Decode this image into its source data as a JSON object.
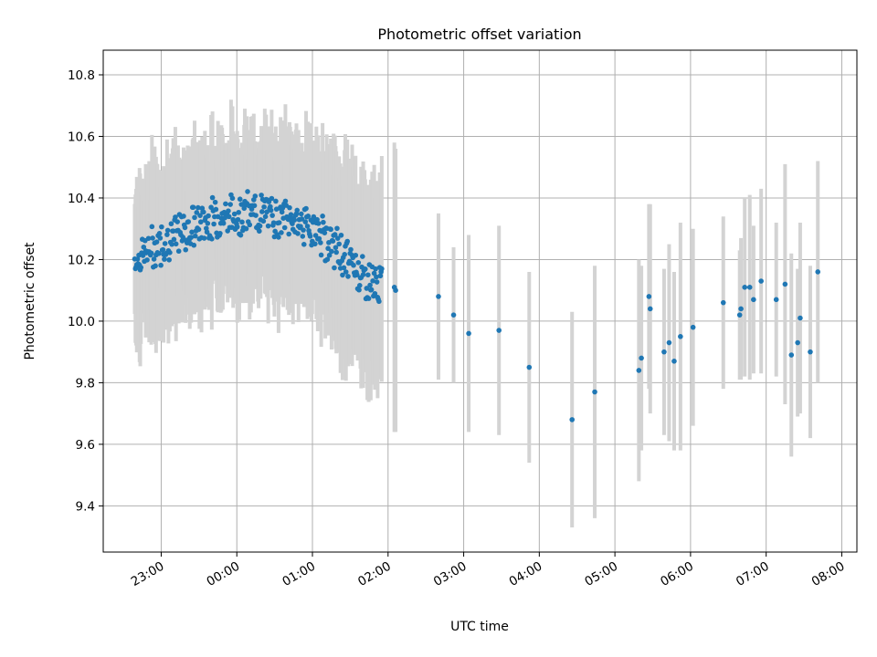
{
  "chart_data": {
    "type": "scatter",
    "title": "Photometric offset variation",
    "xlabel": "UTC time",
    "ylabel": "Photometric offset",
    "x_format": "HH:MM",
    "x_reference_day": "2000-01-01",
    "xlim": [
      "2000-01-01T22:14",
      "2000-01-02T08:12"
    ],
    "ylim": [
      9.25,
      10.88
    ],
    "x_ticks": [
      "23:00",
      "00:00",
      "01:00",
      "02:00",
      "03:00",
      "04:00",
      "05:00",
      "06:00",
      "07:00",
      "08:00"
    ],
    "y_ticks": [
      9.4,
      9.6,
      9.8,
      10.0,
      10.2,
      10.4,
      10.6,
      10.8
    ],
    "grid": true,
    "x_tick_rotation": 30,
    "colors": {
      "points": "#1f77b4",
      "errorbars": "#d3d3d3",
      "grid": "#b0b0b0"
    },
    "dense_segment": {
      "count": 360,
      "x_start": "2000-01-01T22:39",
      "x_end": "2000-01-02T01:55"
    },
    "sparse_points": [
      {
        "x": "2000-01-02T02:05",
        "y": 10.11,
        "err": 0.47
      },
      {
        "x": "2000-01-02T02:06",
        "y": 10.1,
        "err": 0.46
      },
      {
        "x": "2000-01-02T02:40",
        "y": 10.08,
        "err": 0.27
      },
      {
        "x": "2000-01-02T02:52",
        "y": 10.02,
        "err": 0.22
      },
      {
        "x": "2000-01-02T03:04",
        "y": 9.96,
        "err": 0.32
      },
      {
        "x": "2000-01-02T03:28",
        "y": 9.97,
        "err": 0.34
      },
      {
        "x": "2000-01-02T03:52",
        "y": 9.85,
        "err": 0.31
      },
      {
        "x": "2000-01-02T04:26",
        "y": 9.68,
        "err": 0.35
      },
      {
        "x": "2000-01-02T04:44",
        "y": 9.77,
        "err": 0.41
      },
      {
        "x": "2000-01-02T05:19",
        "y": 9.84,
        "err": 0.36
      },
      {
        "x": "2000-01-02T05:21",
        "y": 9.88,
        "err": 0.3
      },
      {
        "x": "2000-01-02T05:27",
        "y": 10.08,
        "err": 0.3
      },
      {
        "x": "2000-01-02T05:28",
        "y": 10.04,
        "err": 0.34
      },
      {
        "x": "2000-01-02T05:39",
        "y": 9.9,
        "err": 0.27
      },
      {
        "x": "2000-01-02T05:43",
        "y": 9.93,
        "err": 0.32
      },
      {
        "x": "2000-01-02T05:47",
        "y": 9.87,
        "err": 0.29
      },
      {
        "x": "2000-01-02T05:52",
        "y": 9.95,
        "err": 0.37
      },
      {
        "x": "2000-01-02T06:02",
        "y": 9.98,
        "err": 0.32
      },
      {
        "x": "2000-01-02T06:26",
        "y": 10.06,
        "err": 0.28
      },
      {
        "x": "2000-01-02T06:39",
        "y": 10.02,
        "err": 0.21
      },
      {
        "x": "2000-01-02T06:40",
        "y": 10.04,
        "err": 0.23
      },
      {
        "x": "2000-01-02T06:43",
        "y": 10.11,
        "err": 0.29
      },
      {
        "x": "2000-01-02T06:47",
        "y": 10.11,
        "err": 0.3
      },
      {
        "x": "2000-01-02T06:50",
        "y": 10.07,
        "err": 0.24
      },
      {
        "x": "2000-01-02T06:56",
        "y": 10.13,
        "err": 0.3
      },
      {
        "x": "2000-01-02T07:08",
        "y": 10.07,
        "err": 0.25
      },
      {
        "x": "2000-01-02T07:15",
        "y": 10.12,
        "err": 0.39
      },
      {
        "x": "2000-01-02T07:20",
        "y": 9.89,
        "err": 0.33
      },
      {
        "x": "2000-01-02T07:25",
        "y": 9.93,
        "err": 0.24
      },
      {
        "x": "2000-01-02T07:27",
        "y": 10.01,
        "err": 0.31
      },
      {
        "x": "2000-01-02T07:35",
        "y": 9.9,
        "err": 0.28
      },
      {
        "x": "2000-01-02T07:41",
        "y": 10.16,
        "err": 0.36
      }
    ]
  }
}
